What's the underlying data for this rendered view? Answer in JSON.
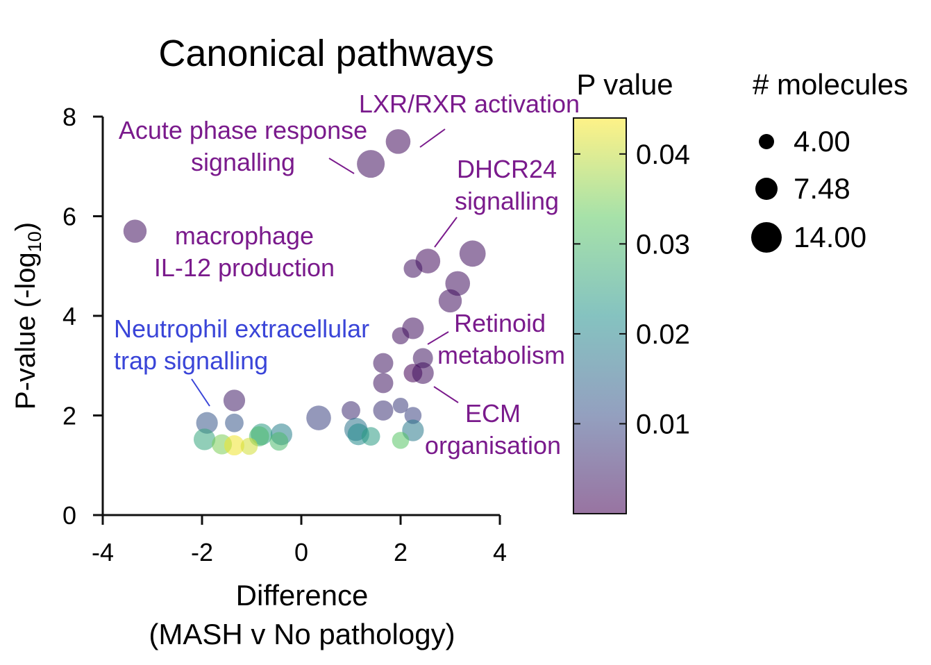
{
  "chart_data": {
    "type": "scatter",
    "title": "Canonical pathways",
    "xlabel_line1": "Difference",
    "xlabel_line2": "(MASH v No pathology)",
    "ylabel_main": "P-value (-log",
    "ylabel_sub": "10",
    "ylabel_end": ")",
    "xlim": [
      -4,
      4
    ],
    "ylim": [
      0,
      8
    ],
    "x_ticks": [
      -4,
      -2,
      0,
      2,
      4
    ],
    "y_ticks": [
      0,
      2,
      4,
      6,
      8
    ],
    "x_tick_labels": [
      "-4",
      "-2",
      "0",
      "2",
      "4"
    ],
    "y_tick_labels": [
      "0",
      "2",
      "4",
      "6",
      "8"
    ],
    "colorbar": {
      "title": "P value",
      "range": [
        0,
        0.044
      ],
      "tick_values": [
        0.01,
        0.02,
        0.03,
        0.04
      ],
      "tick_labels": [
        "0.01",
        "0.02",
        "0.03",
        "0.04"
      ],
      "colormap": [
        "#440154",
        "#3b528b",
        "#21918c",
        "#5ec962",
        "#fde725"
      ]
    },
    "size_legend": {
      "title": "# molecules",
      "values": [
        4.0,
        7.48,
        14.0
      ],
      "labels": [
        "4.00",
        "7.48",
        "14.00"
      ]
    },
    "points": [
      {
        "x": 1.95,
        "y": 7.5,
        "p": 0.0015,
        "n": 12
      },
      {
        "x": 1.4,
        "y": 7.05,
        "p": 0.002,
        "n": 14
      },
      {
        "x": -3.35,
        "y": 5.7,
        "p": 0.002,
        "n": 11
      },
      {
        "x": 3.45,
        "y": 5.25,
        "p": 0.002,
        "n": 13
      },
      {
        "x": 2.55,
        "y": 5.1,
        "p": 0.0015,
        "n": 12
      },
      {
        "x": 2.25,
        "y": 4.95,
        "p": 0.0025,
        "n": 8
      },
      {
        "x": 3.15,
        "y": 4.65,
        "p": 0.002,
        "n": 12
      },
      {
        "x": 3.0,
        "y": 4.3,
        "p": 0.002,
        "n": 11
      },
      {
        "x": 2.25,
        "y": 3.75,
        "p": 0.002,
        "n": 10
      },
      {
        "x": 2.0,
        "y": 3.6,
        "p": 0.002,
        "n": 7
      },
      {
        "x": 2.45,
        "y": 3.15,
        "p": 0.003,
        "n": 9
      },
      {
        "x": 1.65,
        "y": 3.05,
        "p": 0.003,
        "n": 9
      },
      {
        "x": 2.25,
        "y": 2.85,
        "p": 0.0001,
        "n": 8
      },
      {
        "x": 2.45,
        "y": 2.85,
        "p": 0.002,
        "n": 10
      },
      {
        "x": 1.65,
        "y": 2.65,
        "p": 0.003,
        "n": 9
      },
      {
        "x": -1.35,
        "y": 2.3,
        "p": 0.004,
        "n": 10
      },
      {
        "x": 1.0,
        "y": 2.1,
        "p": 0.006,
        "n": 8
      },
      {
        "x": 1.65,
        "y": 2.1,
        "p": 0.007,
        "n": 9
      },
      {
        "x": 2.0,
        "y": 2.2,
        "p": 0.008,
        "n": 6
      },
      {
        "x": 2.25,
        "y": 2.0,
        "p": 0.009,
        "n": 7
      },
      {
        "x": 0.35,
        "y": 1.95,
        "p": 0.009,
        "n": 12
      },
      {
        "x": -1.9,
        "y": 1.85,
        "p": 0.012,
        "n": 10
      },
      {
        "x": -1.35,
        "y": 1.85,
        "p": 0.012,
        "n": 8
      },
      {
        "x": 2.25,
        "y": 1.7,
        "p": 0.018,
        "n": 10
      },
      {
        "x": 1.1,
        "y": 1.72,
        "p": 0.017,
        "n": 11
      },
      {
        "x": 1.15,
        "y": 1.62,
        "p": 0.021,
        "n": 10
      },
      {
        "x": 1.4,
        "y": 1.58,
        "p": 0.024,
        "n": 8
      },
      {
        "x": -0.4,
        "y": 1.62,
        "p": 0.019,
        "n": 10
      },
      {
        "x": -0.8,
        "y": 1.62,
        "p": 0.024,
        "n": 10
      },
      {
        "x": -0.85,
        "y": 1.58,
        "p": 0.03,
        "n": 9
      },
      {
        "x": -0.45,
        "y": 1.48,
        "p": 0.03,
        "n": 8
      },
      {
        "x": -1.95,
        "y": 1.52,
        "p": 0.026,
        "n": 10
      },
      {
        "x": -1.6,
        "y": 1.42,
        "p": 0.035,
        "n": 9
      },
      {
        "x": -1.35,
        "y": 1.4,
        "p": 0.043,
        "n": 9
      },
      {
        "x": -1.05,
        "y": 1.38,
        "p": 0.041,
        "n": 7
      },
      {
        "x": 2.0,
        "y": 1.5,
        "p": 0.032,
        "n": 7
      }
    ],
    "annotations": [
      {
        "lines": [
          "LXR/RXR activation"
        ],
        "color": "#7a1a8c"
      },
      {
        "lines": [
          "Acute phase response",
          "signalling"
        ],
        "color": "#7a1a8c"
      },
      {
        "lines": [
          "DHCR24",
          "signalling"
        ],
        "color": "#7a1a8c"
      },
      {
        "lines": [
          "macrophage",
          "IL-12 production"
        ],
        "color": "#7a1a8c"
      },
      {
        "lines": [
          "Retinoid",
          "metabolism"
        ],
        "color": "#7a1a8c"
      },
      {
        "lines": [
          "Neutrophil extracellular",
          "trap signalling"
        ],
        "color": "#3a45d8"
      },
      {
        "lines": [
          "ECM",
          "organisation"
        ],
        "color": "#7a1a8c"
      }
    ]
  }
}
